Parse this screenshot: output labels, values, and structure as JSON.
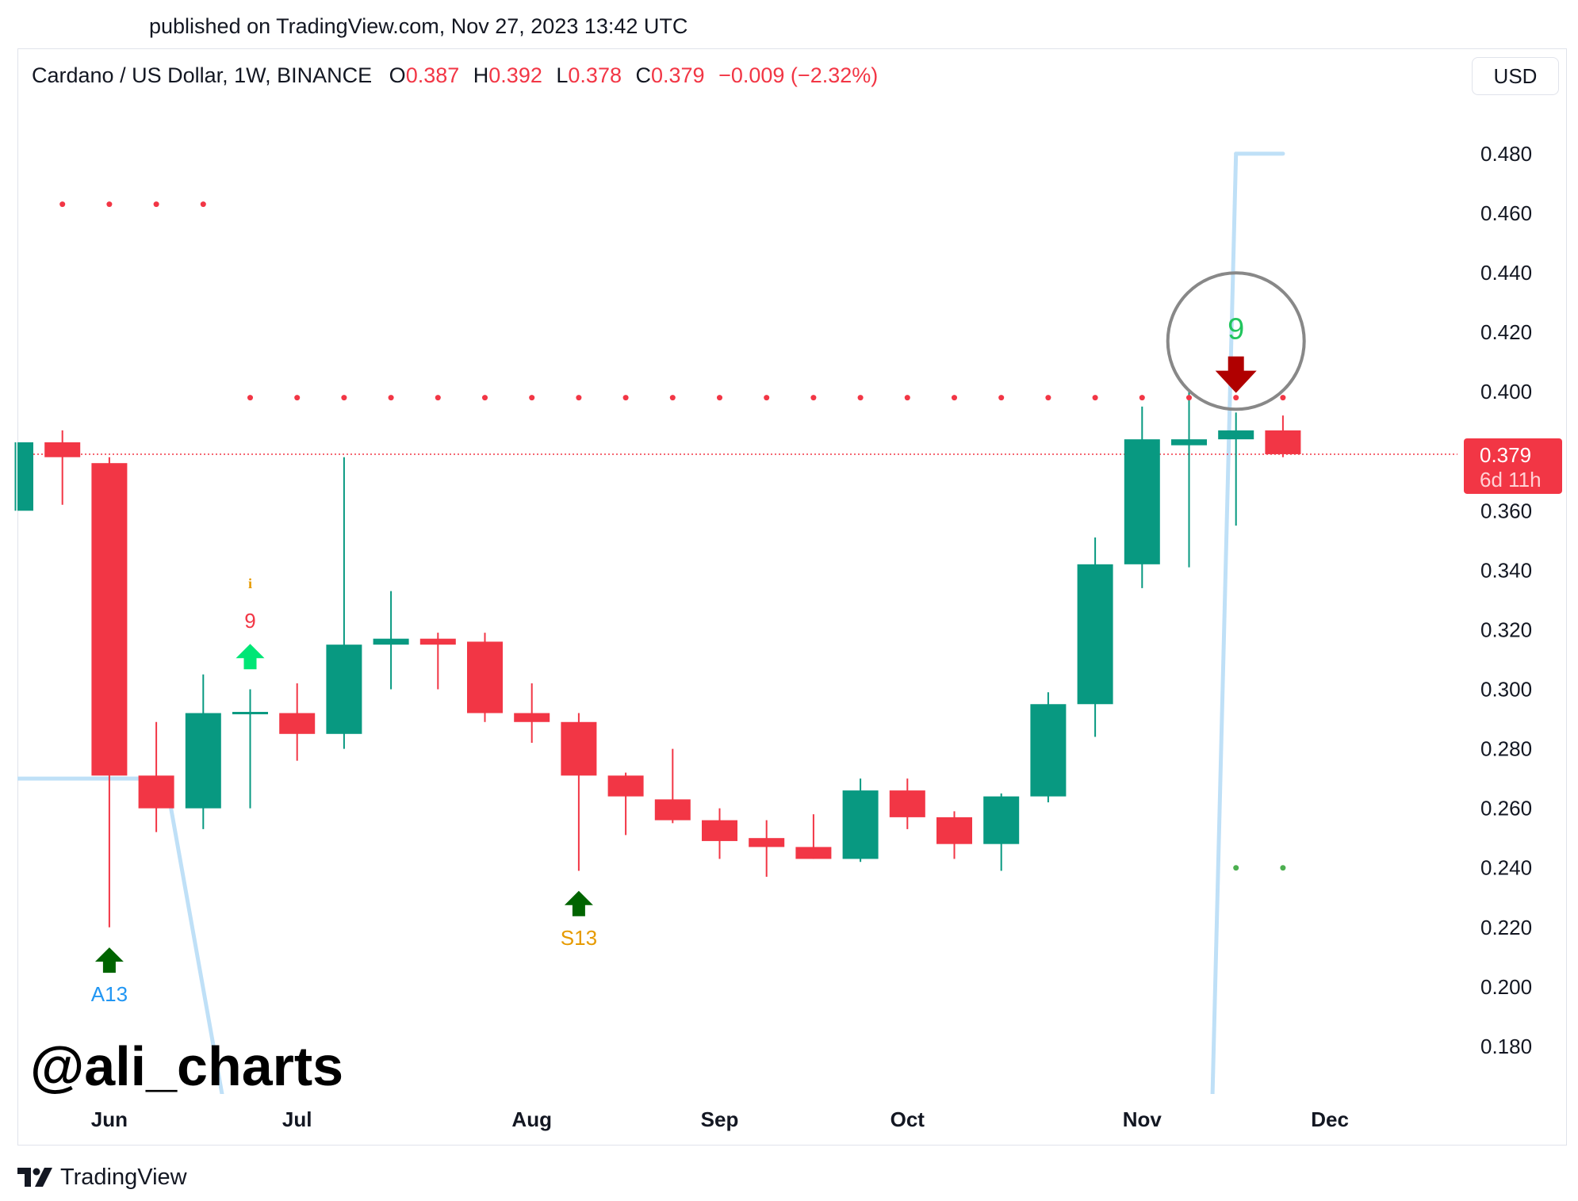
{
  "header": {
    "published": "published on TradingView.com, Nov 27, 2023 13:42 UTC"
  },
  "symbol": {
    "name": "Cardano / US Dollar, 1W, BINANCE",
    "open_label": "O",
    "open": "0.387",
    "high_label": "H",
    "high": "0.392",
    "low_label": "L",
    "low": "0.378",
    "close_label": "C",
    "close": "0.379",
    "change": "−0.009 (−2.32%)"
  },
  "currency_button": "USD",
  "watermark": "@ali_charts",
  "brand": {
    "name": "TradingView",
    "logo_text": "17"
  },
  "colors": {
    "up": "#089981",
    "down": "#f23645",
    "dots_red": "#f23645",
    "dots_green": "#4caf50",
    "line": "#bfe0f7",
    "arrow_dark_green": "#006400",
    "arrow_light_green": "#00e676",
    "arrow_red": "#b00000",
    "label_blue": "#2196f3",
    "label_orange": "#e69a00"
  },
  "chart_data": {
    "type": "candlestick",
    "title": "Cardano / US Dollar, 1W, BINANCE",
    "ylim": [
      0.164,
      0.497
    ],
    "yticks": [
      "0.180",
      "0.200",
      "0.220",
      "0.240",
      "0.260",
      "0.280",
      "0.300",
      "0.320",
      "0.340",
      "0.360",
      "0.380",
      "0.400",
      "0.420",
      "0.440",
      "0.460",
      "0.480"
    ],
    "x_labels": [
      {
        "label": "Jun",
        "week": 2
      },
      {
        "label": "Jul",
        "week": 6
      },
      {
        "label": "Aug",
        "week": 11
      },
      {
        "label": "Sep",
        "week": 15
      },
      {
        "label": "Oct",
        "week": 19
      },
      {
        "label": "Nov",
        "week": 24
      },
      {
        "label": "Dec",
        "week": 28
      }
    ],
    "last_price": {
      "value": 0.379,
      "label": "0.379",
      "countdown": "6d 11h"
    },
    "candles": [
      {
        "o": 0.36,
        "h": 0.383,
        "l": 0.36,
        "c": 0.383
      },
      {
        "o": 0.383,
        "h": 0.387,
        "l": 0.362,
        "c": 0.378
      },
      {
        "o": 0.376,
        "h": 0.378,
        "l": 0.22,
        "c": 0.271
      },
      {
        "o": 0.271,
        "h": 0.289,
        "l": 0.252,
        "c": 0.26
      },
      {
        "o": 0.26,
        "h": 0.305,
        "l": 0.253,
        "c": 0.292
      },
      {
        "o": 0.292,
        "h": 0.3,
        "l": 0.26,
        "c": 0.292
      },
      {
        "o": 0.292,
        "h": 0.302,
        "l": 0.276,
        "c": 0.285
      },
      {
        "o": 0.285,
        "h": 0.378,
        "l": 0.28,
        "c": 0.315
      },
      {
        "o": 0.315,
        "h": 0.333,
        "l": 0.3,
        "c": 0.317
      },
      {
        "o": 0.317,
        "h": 0.319,
        "l": 0.3,
        "c": 0.315
      },
      {
        "o": 0.316,
        "h": 0.319,
        "l": 0.289,
        "c": 0.292
      },
      {
        "o": 0.292,
        "h": 0.302,
        "l": 0.282,
        "c": 0.289
      },
      {
        "o": 0.289,
        "h": 0.292,
        "l": 0.239,
        "c": 0.271
      },
      {
        "o": 0.271,
        "h": 0.272,
        "l": 0.251,
        "c": 0.264
      },
      {
        "o": 0.263,
        "h": 0.28,
        "l": 0.255,
        "c": 0.256
      },
      {
        "o": 0.256,
        "h": 0.26,
        "l": 0.243,
        "c": 0.249
      },
      {
        "o": 0.25,
        "h": 0.256,
        "l": 0.237,
        "c": 0.247
      },
      {
        "o": 0.247,
        "h": 0.258,
        "l": 0.243,
        "c": 0.243
      },
      {
        "o": 0.243,
        "h": 0.27,
        "l": 0.242,
        "c": 0.266
      },
      {
        "o": 0.266,
        "h": 0.27,
        "l": 0.253,
        "c": 0.257
      },
      {
        "o": 0.257,
        "h": 0.259,
        "l": 0.243,
        "c": 0.248
      },
      {
        "o": 0.248,
        "h": 0.265,
        "l": 0.239,
        "c": 0.264
      },
      {
        "o": 0.264,
        "h": 0.299,
        "l": 0.262,
        "c": 0.295
      },
      {
        "o": 0.295,
        "h": 0.351,
        "l": 0.284,
        "c": 0.342
      },
      {
        "o": 0.342,
        "h": 0.395,
        "l": 0.334,
        "c": 0.384
      },
      {
        "o": 0.382,
        "h": 0.4,
        "l": 0.341,
        "c": 0.384
      },
      {
        "o": 0.384,
        "h": 0.393,
        "l": 0.355,
        "c": 0.387
      },
      {
        "o": 0.387,
        "h": 0.392,
        "l": 0.378,
        "c": 0.379
      }
    ],
    "dots_red": [
      {
        "from_week": 1,
        "to_week": 4,
        "value": 0.463
      },
      {
        "from_week": 5,
        "to_week": 27,
        "value": 0.398
      }
    ],
    "dots_green": [
      {
        "from_week": 26,
        "to_week": 27,
        "value": 0.24
      }
    ],
    "annotations": [
      {
        "type": "arrow-up",
        "color": "dark-green",
        "week": 2,
        "value": 0.209,
        "label": "A13",
        "label_color": "blue"
      },
      {
        "type": "arrow-up",
        "color": "light-green",
        "week": 5,
        "value": 0.311,
        "label": "9",
        "label_color": "red"
      },
      {
        "type": "glyph",
        "week": 5,
        "value": 0.334,
        "label": "i",
        "label_color": "orange"
      },
      {
        "type": "arrow-up",
        "color": "dark-green",
        "week": 12,
        "value": 0.228,
        "label": "S13",
        "label_color": "orange"
      },
      {
        "type": "arrow-down",
        "color": "red",
        "week": 26,
        "value": 0.406,
        "label": "9",
        "label_color": "green"
      }
    ],
    "highlight_circle": {
      "week": 26,
      "value": 0.417
    },
    "line_segments": [
      [
        {
          "week": -0.5,
          "value": 0.27
        },
        {
          "week": 3.2,
          "value": 0.27
        }
      ],
      [
        {
          "week": 3.2,
          "value": 0.27
        },
        {
          "week": 4.4,
          "value": 0.164
        }
      ],
      [
        {
          "week": 25.5,
          "value": 0.164
        },
        {
          "week": 26,
          "value": 0.48
        }
      ],
      [
        {
          "week": 26,
          "value": 0.48
        },
        {
          "week": 27,
          "value": 0.48
        }
      ]
    ]
  }
}
